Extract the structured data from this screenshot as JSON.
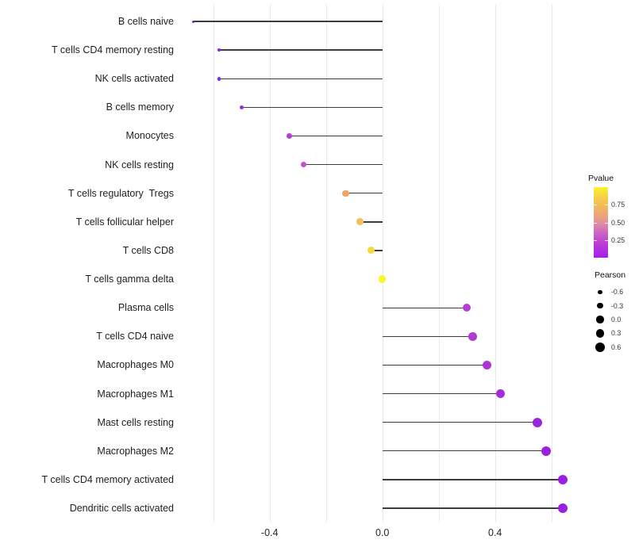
{
  "chart_data": {
    "type": "lollipop",
    "title": "",
    "description": "Horizontal lollipop chart of immune cell types vs Pearson correlation; dot color encodes Pvalue, dot size encodes Pearson",
    "x_axis": {
      "label": "",
      "tick_labels": [
        "-0.4",
        "0.0",
        "0.4"
      ],
      "tick_values": [
        -0.4,
        0.0,
        0.4
      ],
      "gridline_values": [
        -0.6,
        -0.4,
        -0.2,
        0.0,
        0.2,
        0.4,
        0.6
      ],
      "range": [
        -0.69,
        0.66
      ],
      "grid": "vertical-only"
    },
    "series": [
      {
        "label": "B cells naive",
        "pearson": -0.67,
        "color": "#7B22D8",
        "radius": 1.5
      },
      {
        "label": "T cells CD4 memory resting",
        "pearson": -0.58,
        "color": "#8527DF",
        "radius": 2.2
      },
      {
        "label": "NK cells activated",
        "pearson": -0.58,
        "color": "#8A2AE0",
        "radius": 2.3
      },
      {
        "label": "B cells memory",
        "pearson": -0.5,
        "color": "#9530DB",
        "radius": 2.7
      },
      {
        "label": "Monocytes",
        "pearson": -0.33,
        "color": "#B43DCE",
        "radius": 3.5
      },
      {
        "label": "NK cells resting",
        "pearson": -0.28,
        "color": "#C550CB",
        "radius": 3.65
      },
      {
        "label": "T cells regulatory  Tregs",
        "pearson": -0.13,
        "color": "#EFA566",
        "radius": 4.2
      },
      {
        "label": "T cells follicular helper",
        "pearson": -0.08,
        "color": "#F0C35A",
        "radius": 4.4
      },
      {
        "label": "T cells CD8",
        "pearson": -0.04,
        "color": "#F5D83E",
        "radius": 4.5
      },
      {
        "label": "T cells gamma delta",
        "pearson": 0.0,
        "color": "#FAF821",
        "radius": 4.65
      },
      {
        "label": "Plasma cells",
        "pearson": 0.3,
        "color": "#B83ED1",
        "radius": 5.2
      },
      {
        "label": "T cells CD4 naive",
        "pearson": 0.32,
        "color": "#B23AD4",
        "radius": 5.3
      },
      {
        "label": "Macrophages M0",
        "pearson": 0.37,
        "color": "#AB33D8",
        "radius": 5.5
      },
      {
        "label": "Macrophages M1",
        "pearson": 0.42,
        "color": "#A42CDB",
        "radius": 5.6
      },
      {
        "label": "Mast cells resting",
        "pearson": 0.55,
        "color": "#9D25DE",
        "radius": 6.0
      },
      {
        "label": "Macrophages M2",
        "pearson": 0.58,
        "color": "#9A22DF",
        "radius": 6.1
      },
      {
        "label": "T cells CD4 memory activated",
        "pearson": 0.64,
        "color": "#9A20E4",
        "radius": 6.25
      },
      {
        "label": "Dendritic cells activated",
        "pearson": 0.64,
        "color": "#9A1FE5",
        "radius": 6.3
      }
    ],
    "legends": {
      "pvalue": {
        "title": "Pvalue",
        "range": [
          0,
          1
        ],
        "tick_labels": [
          "0.75",
          "0.50",
          "0.25"
        ],
        "tick_values": [
          0.75,
          0.5,
          0.25
        ],
        "gradient_bottom_to_top": [
          "#A81CF0 0%",
          "#BB3FD4 20%",
          "#CB5BC9 32%",
          "#DC82AF 45%",
          "#E89D89 55%",
          "#EFAD6B 65%",
          "#F2BC57 75%",
          "#F6D345 87%",
          "#FAF32B 100%"
        ]
      },
      "pearson": {
        "title": "Pearson",
        "entries": [
          {
            "label": "-0.6",
            "radius": 2.7
          },
          {
            "label": "-0.3",
            "radius": 3.7
          },
          {
            "label": "0.0",
            "radius": 4.7
          },
          {
            "label": "0.3",
            "radius": 5.3
          },
          {
            "label": "0.6",
            "radius": 6.0
          }
        ],
        "dot_color": "#000000"
      }
    },
    "stem_color": "#3d3d3d",
    "gridline_color": "#e9e9e9"
  }
}
